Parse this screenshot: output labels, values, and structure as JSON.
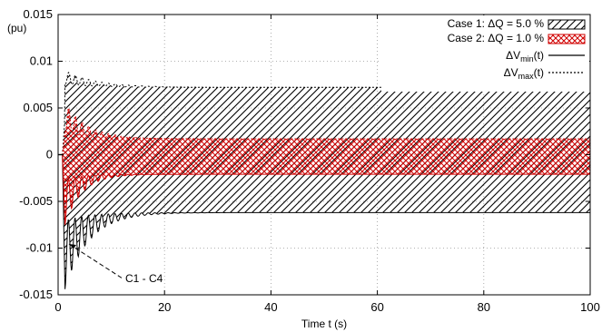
{
  "chart_data": {
    "type": "area",
    "ylabel": "(pu)",
    "xlabel": "Time t (s)",
    "xlim": [
      0,
      100
    ],
    "ylim": [
      -0.015,
      0.015
    ],
    "x_ticks": [
      0,
      20,
      40,
      60,
      80,
      100
    ],
    "x_tick_labels": [
      "0",
      "20",
      "40",
      "60",
      "80",
      "100"
    ],
    "y_ticks": [
      0.015,
      0.01,
      0.005,
      0,
      -0.005,
      -0.01,
      -0.015
    ],
    "y_tick_labels": [
      "0.015",
      "0.01",
      "0.005",
      "0",
      "-0.005",
      "-0.01",
      "-0.015"
    ],
    "grid": "dotted",
    "legend_position": "top-right",
    "annotation": "C1 - C4",
    "series": [
      {
        "name": "Case 1: ΔQ = 5.0 %",
        "color": "#000000",
        "fill": "dense diagonal hatch",
        "steady_band": [
          -0.0062,
          0.0072
        ],
        "transient": "oscillation decays over 0-20 s; min about -0.0144 near t = 1.3 s, max about 0.0088 near t = 2 s"
      },
      {
        "name": "Case 2: ΔQ = 1.0 %",
        "color": "#dd0000",
        "fill": "crosshatch",
        "steady_band": [
          -0.0021,
          0.0017
        ],
        "transient": "oscillation decays over 0-15 s; min about -0.0075 near t = 1.3 s, max about 0.005 near t = 3 s"
      },
      {
        "name": "ΔV_min(t)",
        "line": "solid",
        "color": "#000000"
      },
      {
        "name": "ΔV_max(t)",
        "line": "dotted",
        "color": "#000000"
      }
    ]
  },
  "legend": [
    {
      "label": "Case 1: ΔQ = 5.0 %",
      "swatch": "hatch-black"
    },
    {
      "label": "Case 2: ΔQ = 1.0 %",
      "swatch": "hatch-red"
    },
    {
      "base": "ΔV",
      "sub": "min",
      "tail": "(t)",
      "style": "solid"
    },
    {
      "base": "ΔV",
      "sub": "max",
      "tail": "(t)",
      "style": "dotted"
    }
  ]
}
